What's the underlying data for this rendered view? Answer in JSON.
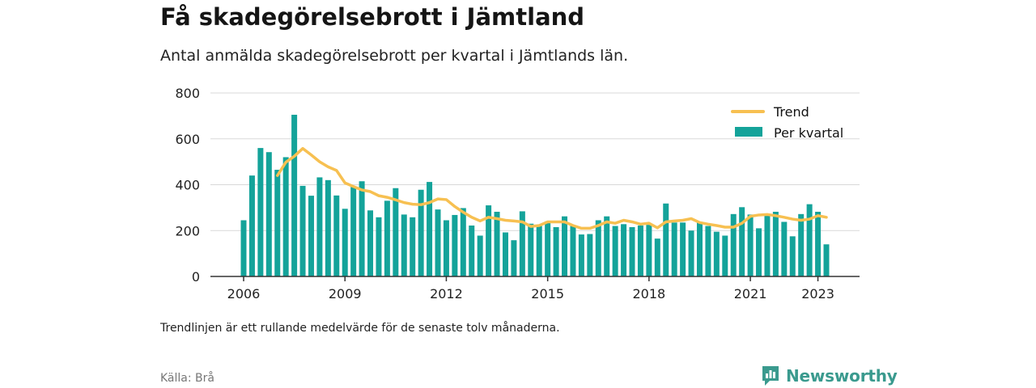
{
  "header": {
    "title": "Få skadegörelsebrott i Jämtland",
    "subtitle": "Antal anmälda skadegörelsebrott per kvartal i Jämtlands län."
  },
  "footer": {
    "note": "Trendlinjen är ett rullande medelvärde för de senaste tolv månaderna.",
    "source": "Källa: Brå",
    "brand": "Newsworthy"
  },
  "colors": {
    "bars": "#14a39a",
    "trend": "#f7c051",
    "grid": "#d9d9d9",
    "axis": "#333333",
    "brand": "#3a9a8e"
  },
  "chart_data": {
    "type": "bar",
    "ylim": [
      0,
      800
    ],
    "yticks": [
      "0",
      "200",
      "400",
      "600",
      "800"
    ],
    "xticks": [
      "2006",
      "2009",
      "2012",
      "2015",
      "2018",
      "2021",
      "2023"
    ],
    "grid": true,
    "legend_position": "top-right",
    "series": [
      {
        "name": "Per kvartal",
        "values": [
          245,
          440,
          560,
          542,
          465,
          520,
          705,
          395,
          352,
          432,
          420,
          353,
          295,
          390,
          415,
          288,
          258,
          330,
          385,
          270,
          258,
          378,
          412,
          292,
          245,
          268,
          298,
          222,
          178,
          310,
          282,
          192,
          158,
          284,
          230,
          220,
          240,
          215,
          262,
          220,
          183,
          185,
          245,
          262,
          220,
          228,
          215,
          222,
          225,
          165,
          318,
          235,
          235,
          200,
          238,
          220,
          195,
          178,
          272,
          302,
          270,
          210,
          265,
          282,
          238,
          175,
          272,
          315,
          282,
          140
        ]
      },
      {
        "name": "Trend",
        "values": [
          null,
          null,
          null,
          null,
          440,
          498,
          524,
          558,
          530,
          500,
          478,
          462,
          408,
          392,
          377,
          370,
          352,
          345,
          334,
          322,
          315,
          313,
          322,
          338,
          335,
          305,
          280,
          258,
          242,
          258,
          252,
          245,
          242,
          238,
          218,
          222,
          238,
          238,
          238,
          222,
          210,
          210,
          222,
          238,
          232,
          245,
          238,
          228,
          232,
          212,
          238,
          242,
          245,
          252,
          235,
          228,
          222,
          215,
          215,
          232,
          262,
          268,
          270,
          265,
          258,
          250,
          245,
          250,
          265,
          258
        ]
      }
    ]
  }
}
